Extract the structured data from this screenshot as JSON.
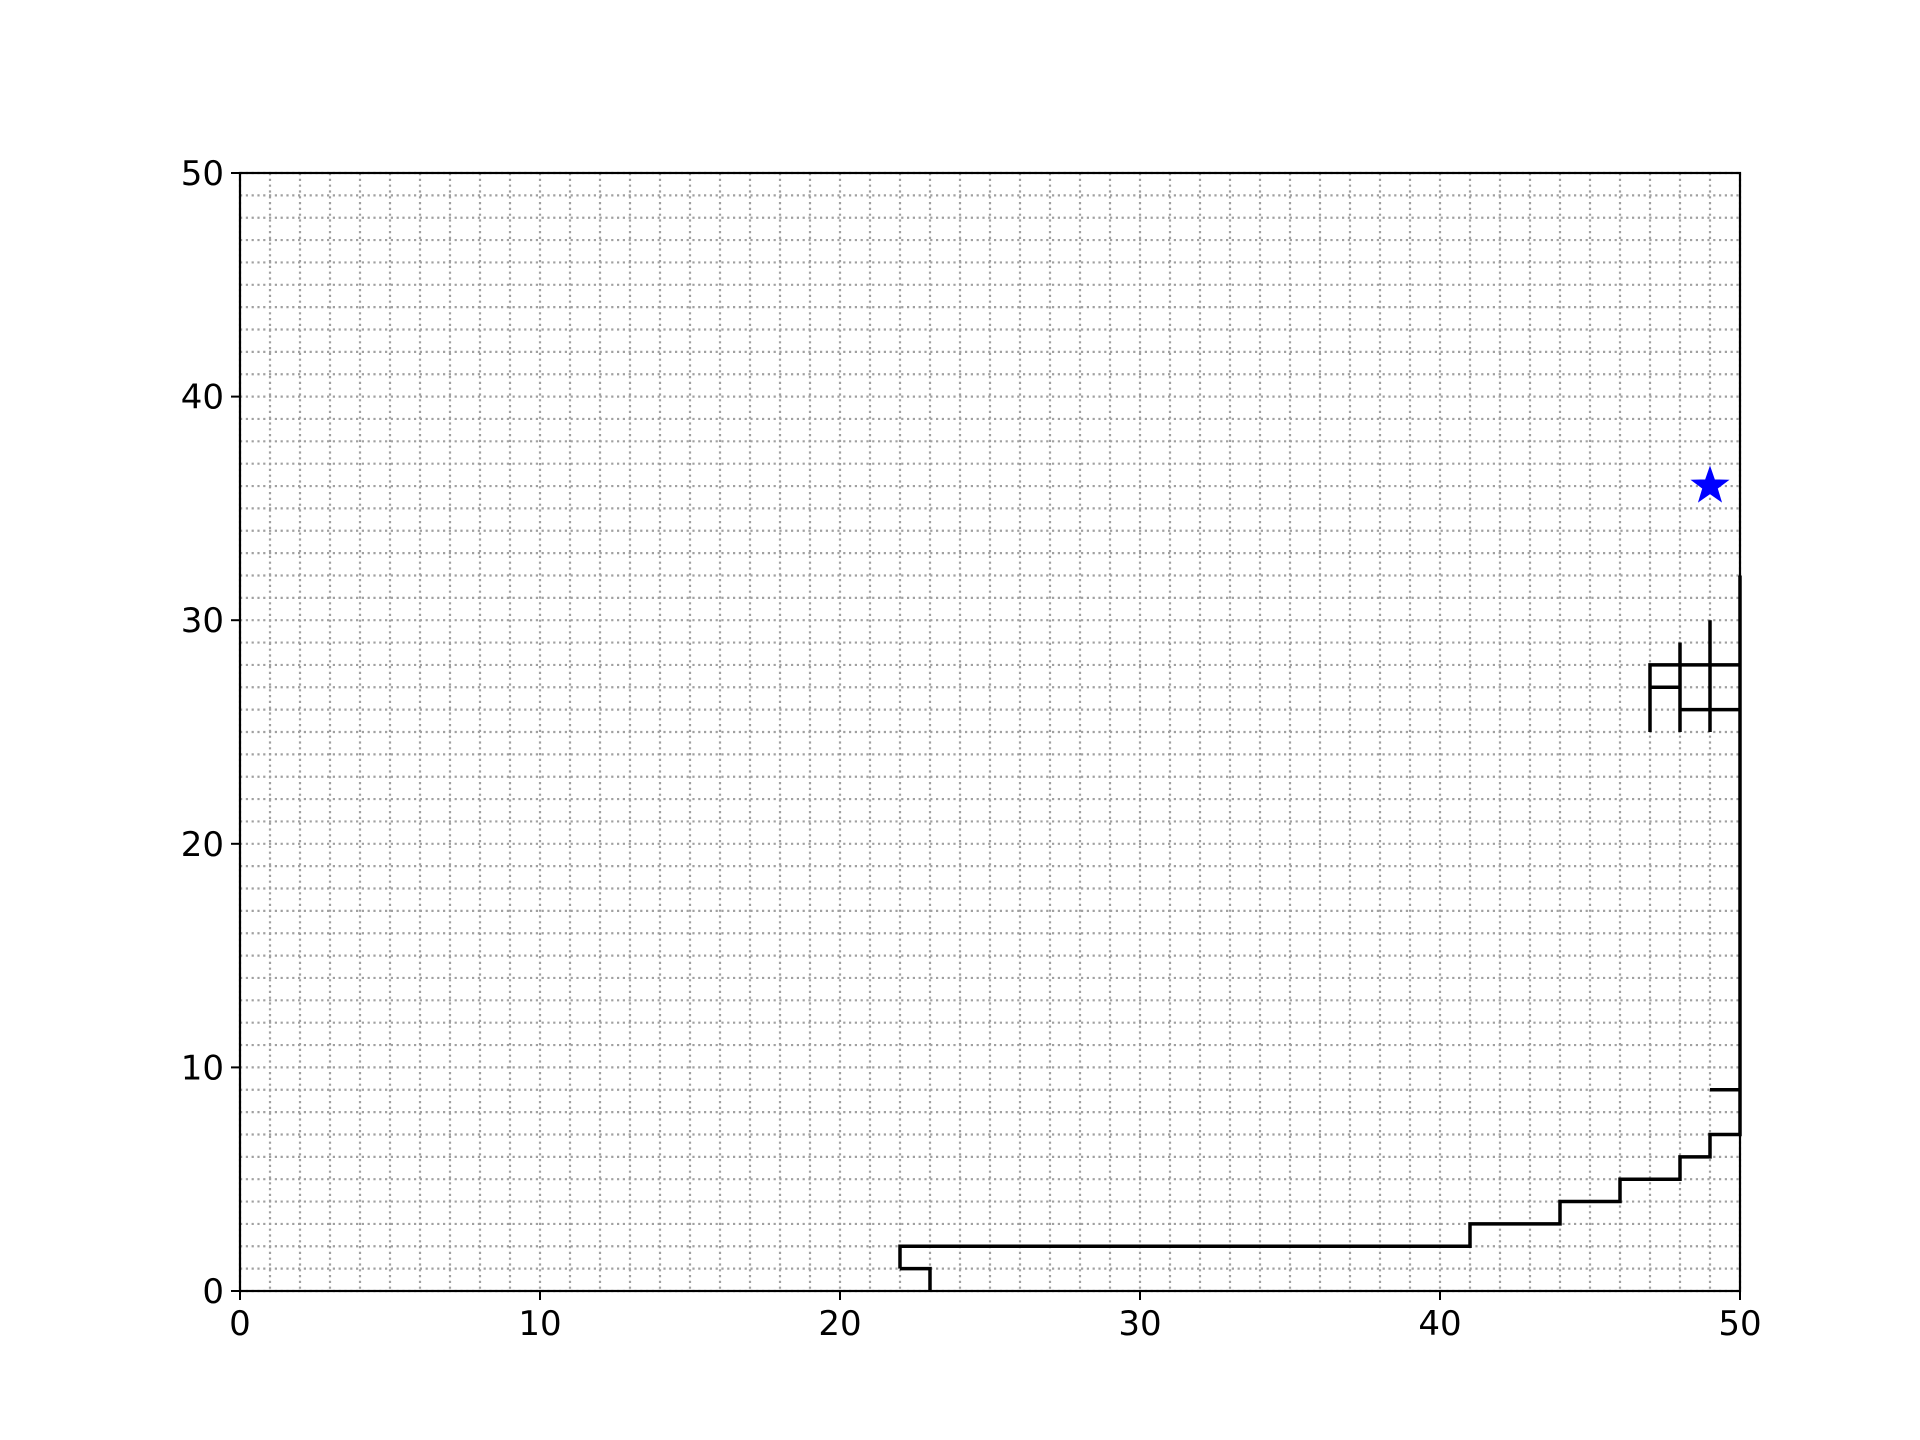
{
  "chart_data": {
    "type": "line",
    "title": "",
    "xlabel": "",
    "ylabel": "",
    "xlim": [
      0,
      50
    ],
    "ylim": [
      0,
      50
    ],
    "x_ticks": [
      "0",
      "10",
      "20",
      "30",
      "40",
      "50"
    ],
    "y_ticks": [
      "0",
      "10",
      "20",
      "30",
      "40",
      "50"
    ],
    "grid": {
      "on": true,
      "step": 1,
      "style": "dotted",
      "color": "#a0a0a0"
    },
    "path_color": "#000000",
    "segments": [
      [
        [
          22,
          1
        ],
        [
          22,
          2
        ],
        [
          41,
          2
        ],
        [
          41,
          3
        ],
        [
          44,
          3
        ],
        [
          44,
          4
        ],
        [
          46,
          4
        ],
        [
          46,
          5
        ],
        [
          48,
          5
        ],
        [
          48,
          6
        ],
        [
          49,
          6
        ],
        [
          49,
          7
        ],
        [
          50,
          7
        ],
        [
          50,
          32
        ]
      ],
      [
        [
          22,
          1
        ],
        [
          23,
          1
        ],
        [
          23,
          0
        ]
      ],
      [
        [
          49,
          9
        ],
        [
          50,
          9
        ]
      ],
      [
        [
          47,
          25
        ],
        [
          47,
          28
        ],
        [
          50,
          28
        ]
      ],
      [
        [
          47,
          27
        ],
        [
          48,
          27
        ]
      ],
      [
        [
          48,
          25
        ],
        [
          48,
          29
        ]
      ],
      [
        [
          49,
          25
        ],
        [
          49,
          30
        ]
      ],
      [
        [
          48,
          26
        ],
        [
          50,
          26
        ]
      ]
    ],
    "markers": [
      {
        "x": 49,
        "y": 36,
        "shape": "star",
        "color": "#0000ff"
      }
    ]
  }
}
